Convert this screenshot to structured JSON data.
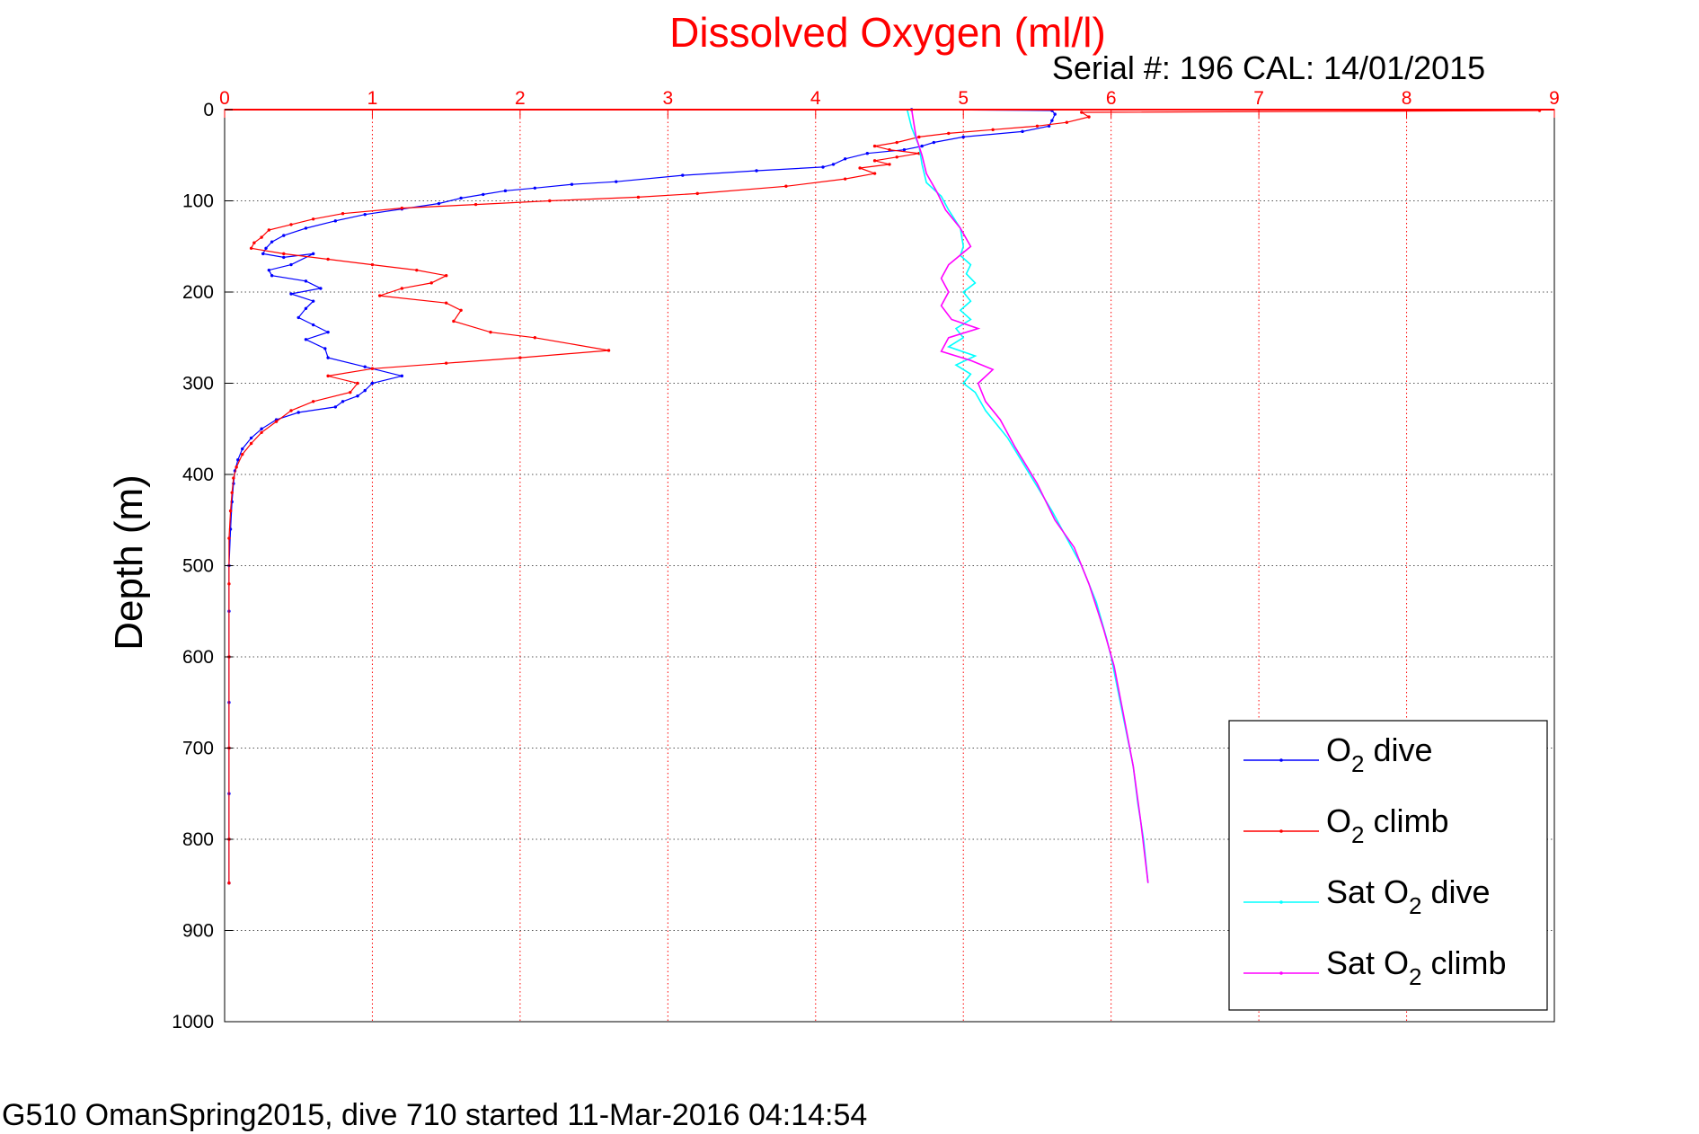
{
  "footer": "G510 OmanSpring2015, dive 710 started 11-Mar-2016 04:14:54",
  "chart_data": {
    "type": "line",
    "title": "Dissolved Oxygen (ml/l)",
    "subtitle": "Serial #: 196  CAL: 14/01/2015",
    "xlabel": "",
    "ylabel": "Depth (m)",
    "xlim": [
      0,
      9
    ],
    "ylim": [
      0,
      1000
    ],
    "y_reversed": true,
    "x_axis_position": "top",
    "xticks": [
      0,
      1,
      2,
      3,
      4,
      5,
      6,
      7,
      8,
      9
    ],
    "yticks": [
      0,
      100,
      200,
      300,
      400,
      500,
      600,
      700,
      800,
      900,
      1000
    ],
    "grid": true,
    "legend_position": "bottom-right",
    "colors": {
      "axis_x": "#ff0000",
      "grid": "#ff0000",
      "title": "#ff0000"
    },
    "series": [
      {
        "name": "O2 dive",
        "legend_main": "O",
        "legend_sub": "2",
        "legend_rest": " dive",
        "color": "#0000ff",
        "style": "line-markers",
        "points": [
          [
            4.65,
            0
          ],
          [
            5.6,
            1
          ],
          [
            5.62,
            5
          ],
          [
            5.6,
            12
          ],
          [
            5.58,
            18
          ],
          [
            5.4,
            24
          ],
          [
            5.0,
            30
          ],
          [
            4.8,
            36
          ],
          [
            4.72,
            40
          ],
          [
            4.6,
            44
          ],
          [
            4.35,
            48
          ],
          [
            4.2,
            54
          ],
          [
            4.12,
            60
          ],
          [
            4.05,
            63
          ],
          [
            3.6,
            67
          ],
          [
            3.1,
            72
          ],
          [
            2.65,
            79
          ],
          [
            2.35,
            82
          ],
          [
            2.1,
            86
          ],
          [
            1.9,
            89
          ],
          [
            1.75,
            93
          ],
          [
            1.6,
            97
          ],
          [
            1.45,
            103
          ],
          [
            1.2,
            109
          ],
          [
            0.95,
            115
          ],
          [
            0.75,
            122
          ],
          [
            0.55,
            130
          ],
          [
            0.4,
            138
          ],
          [
            0.32,
            145
          ],
          [
            0.28,
            152
          ],
          [
            0.26,
            158
          ],
          [
            0.4,
            162
          ],
          [
            0.6,
            158
          ],
          [
            0.45,
            170
          ],
          [
            0.3,
            176
          ],
          [
            0.32,
            182
          ],
          [
            0.55,
            188
          ],
          [
            0.65,
            196
          ],
          [
            0.45,
            202
          ],
          [
            0.6,
            210
          ],
          [
            0.55,
            218
          ],
          [
            0.5,
            228
          ],
          [
            0.6,
            236
          ],
          [
            0.7,
            244
          ],
          [
            0.55,
            252
          ],
          [
            0.68,
            262
          ],
          [
            0.7,
            272
          ],
          [
            0.95,
            282
          ],
          [
            1.2,
            292
          ],
          [
            1.0,
            300
          ],
          [
            0.95,
            308
          ],
          [
            0.9,
            314
          ],
          [
            0.8,
            320
          ],
          [
            0.75,
            326
          ],
          [
            0.5,
            332
          ],
          [
            0.35,
            340
          ],
          [
            0.25,
            350
          ],
          [
            0.18,
            360
          ],
          [
            0.12,
            372
          ],
          [
            0.09,
            384
          ],
          [
            0.07,
            396
          ],
          [
            0.06,
            410
          ],
          [
            0.05,
            430
          ],
          [
            0.04,
            460
          ],
          [
            0.03,
            500
          ],
          [
            0.03,
            550
          ],
          [
            0.03,
            600
          ],
          [
            0.03,
            650
          ],
          [
            0.03,
            700
          ],
          [
            0.03,
            750
          ],
          [
            0.03,
            800
          ],
          [
            0.03,
            848
          ]
        ]
      },
      {
        "name": "O2 climb",
        "legend_main": "O",
        "legend_sub": "2",
        "legend_rest": " climb",
        "color": "#ff0000",
        "style": "line-markers",
        "points": [
          [
            8.9,
            1
          ],
          [
            5.8,
            3
          ],
          [
            5.85,
            8
          ],
          [
            5.7,
            14
          ],
          [
            5.5,
            18
          ],
          [
            5.2,
            22
          ],
          [
            4.9,
            26
          ],
          [
            4.7,
            30
          ],
          [
            4.55,
            36
          ],
          [
            4.4,
            40
          ],
          [
            4.5,
            44
          ],
          [
            4.7,
            48
          ],
          [
            4.55,
            52
          ],
          [
            4.4,
            56
          ],
          [
            4.5,
            60
          ],
          [
            4.3,
            64
          ],
          [
            4.4,
            70
          ],
          [
            4.2,
            76
          ],
          [
            3.8,
            84
          ],
          [
            3.2,
            92
          ],
          [
            2.8,
            96
          ],
          [
            2.2,
            100
          ],
          [
            1.7,
            104
          ],
          [
            1.2,
            108
          ],
          [
            0.8,
            114
          ],
          [
            0.6,
            120
          ],
          [
            0.45,
            126
          ],
          [
            0.3,
            132
          ],
          [
            0.25,
            140
          ],
          [
            0.2,
            146
          ],
          [
            0.18,
            152
          ],
          [
            0.4,
            158
          ],
          [
            0.7,
            164
          ],
          [
            1.0,
            170
          ],
          [
            1.3,
            176
          ],
          [
            1.5,
            182
          ],
          [
            1.4,
            190
          ],
          [
            1.2,
            196
          ],
          [
            1.05,
            204
          ],
          [
            1.5,
            212
          ],
          [
            1.6,
            220
          ],
          [
            1.55,
            232
          ],
          [
            1.8,
            244
          ],
          [
            2.1,
            250
          ],
          [
            2.6,
            264
          ],
          [
            2.0,
            272
          ],
          [
            1.5,
            278
          ],
          [
            1.0,
            284
          ],
          [
            0.7,
            292
          ],
          [
            0.9,
            300
          ],
          [
            0.85,
            310
          ],
          [
            0.6,
            320
          ],
          [
            0.45,
            330
          ],
          [
            0.35,
            342
          ],
          [
            0.25,
            354
          ],
          [
            0.18,
            366
          ],
          [
            0.12,
            378
          ],
          [
            0.08,
            392
          ],
          [
            0.06,
            404
          ],
          [
            0.05,
            420
          ],
          [
            0.04,
            440
          ],
          [
            0.03,
            470
          ],
          [
            0.03,
            520
          ],
          [
            0.03,
            600
          ],
          [
            0.03,
            700
          ],
          [
            0.03,
            800
          ],
          [
            0.03,
            848
          ]
        ]
      },
      {
        "name": "Sat O2 dive",
        "legend_main": "Sat O",
        "legend_sub": "2",
        "legend_rest": " dive",
        "color": "#00ffff",
        "style": "line",
        "points": [
          [
            4.62,
            0
          ],
          [
            4.65,
            20
          ],
          [
            4.7,
            40
          ],
          [
            4.72,
            60
          ],
          [
            4.75,
            80
          ],
          [
            4.85,
            95
          ],
          [
            4.9,
            110
          ],
          [
            4.98,
            130
          ],
          [
            5.0,
            150
          ],
          [
            4.98,
            160
          ],
          [
            5.05,
            170
          ],
          [
            5.02,
            180
          ],
          [
            5.08,
            190
          ],
          [
            5.0,
            200
          ],
          [
            5.05,
            210
          ],
          [
            4.98,
            220
          ],
          [
            5.05,
            230
          ],
          [
            4.95,
            240
          ],
          [
            5.0,
            250
          ],
          [
            4.9,
            260
          ],
          [
            5.08,
            270
          ],
          [
            4.95,
            280
          ],
          [
            5.05,
            290
          ],
          [
            5.0,
            300
          ],
          [
            5.08,
            310
          ],
          [
            5.15,
            330
          ],
          [
            5.3,
            360
          ],
          [
            5.45,
            400
          ],
          [
            5.6,
            440
          ],
          [
            5.7,
            470
          ],
          [
            5.8,
            500
          ],
          [
            5.9,
            540
          ],
          [
            5.97,
            580
          ],
          [
            6.0,
            600
          ],
          [
            6.05,
            640
          ],
          [
            6.1,
            680
          ],
          [
            6.15,
            720
          ],
          [
            6.18,
            760
          ],
          [
            6.22,
            800
          ],
          [
            6.25,
            848
          ]
        ]
      },
      {
        "name": "Sat O2 climb",
        "legend_main": "Sat O",
        "legend_sub": "2",
        "legend_rest": " climb",
        "color": "#ff00ff",
        "style": "line",
        "points": [
          [
            4.65,
            0
          ],
          [
            4.66,
            10
          ],
          [
            4.68,
            30
          ],
          [
            4.72,
            50
          ],
          [
            4.75,
            70
          ],
          [
            4.82,
            90
          ],
          [
            4.88,
            110
          ],
          [
            4.98,
            130
          ],
          [
            5.05,
            150
          ],
          [
            4.9,
            170
          ],
          [
            4.85,
            185
          ],
          [
            4.9,
            200
          ],
          [
            4.85,
            215
          ],
          [
            4.92,
            230
          ],
          [
            5.1,
            240
          ],
          [
            4.9,
            250
          ],
          [
            4.85,
            265
          ],
          [
            5.05,
            275
          ],
          [
            5.2,
            285
          ],
          [
            5.1,
            300
          ],
          [
            5.15,
            320
          ],
          [
            5.25,
            340
          ],
          [
            5.35,
            370
          ],
          [
            5.5,
            410
          ],
          [
            5.62,
            450
          ],
          [
            5.75,
            480
          ],
          [
            5.85,
            520
          ],
          [
            5.95,
            570
          ],
          [
            6.02,
            610
          ],
          [
            6.08,
            660
          ],
          [
            6.15,
            720
          ],
          [
            6.2,
            780
          ],
          [
            6.25,
            848
          ]
        ]
      }
    ]
  }
}
